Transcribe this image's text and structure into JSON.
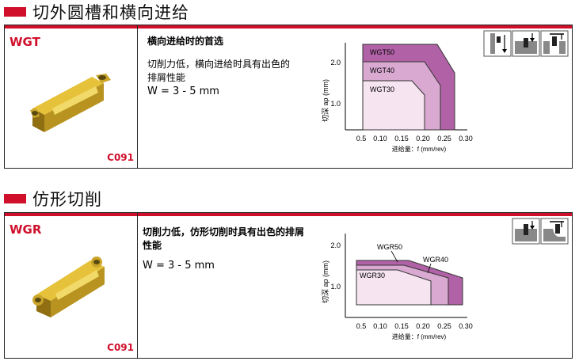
{
  "sections": [
    {
      "title": "切外圆槽和横向进给",
      "code": "WGT",
      "catalog": "C091",
      "lines": [
        "横向进给时的首选",
        "切削力低，横向进给时具有出色的",
        "排屑性能"
      ],
      "width_text": "W = 3 - 5 mm",
      "chart_data": {
        "type": "area",
        "xlabel": "进给量：f (mm/rev)",
        "ylabel": "切深 ap (mm)",
        "x_ticks": [
          "0.5",
          "0.10",
          "0.15",
          "0.20",
          "0.25",
          "0.30"
        ],
        "y_ticks": [
          "2.0",
          "1.0"
        ],
        "series": [
          {
            "name": "WGT50",
            "color": "#b162a6"
          },
          {
            "name": "WGT40",
            "color": "#d9a9d1"
          },
          {
            "name": "WGT30",
            "color": "#f6e4f1"
          }
        ]
      }
    },
    {
      "title": "仿形切削",
      "code": "WGR",
      "catalog": "C091",
      "lines": [
        "切削力低，仿形切削时具有出色的排屑",
        "性能"
      ],
      "width_text": "W = 3 - 5 mm",
      "chart_data": {
        "type": "area",
        "xlabel": "进给量：f (mm/rev)",
        "ylabel": "切深 ap (mm)",
        "x_ticks": [
          "0.5",
          "0.10",
          "0.15",
          "0.20",
          "0.25",
          "0.30"
        ],
        "y_ticks": [
          "2.0",
          "1.0"
        ],
        "series": [
          {
            "name": "WGR50",
            "color": "#b162a6"
          },
          {
            "name": "WGR40",
            "color": "#d9a9d1"
          },
          {
            "name": "WGR30",
            "color": "#f6e4f1"
          }
        ]
      }
    }
  ]
}
